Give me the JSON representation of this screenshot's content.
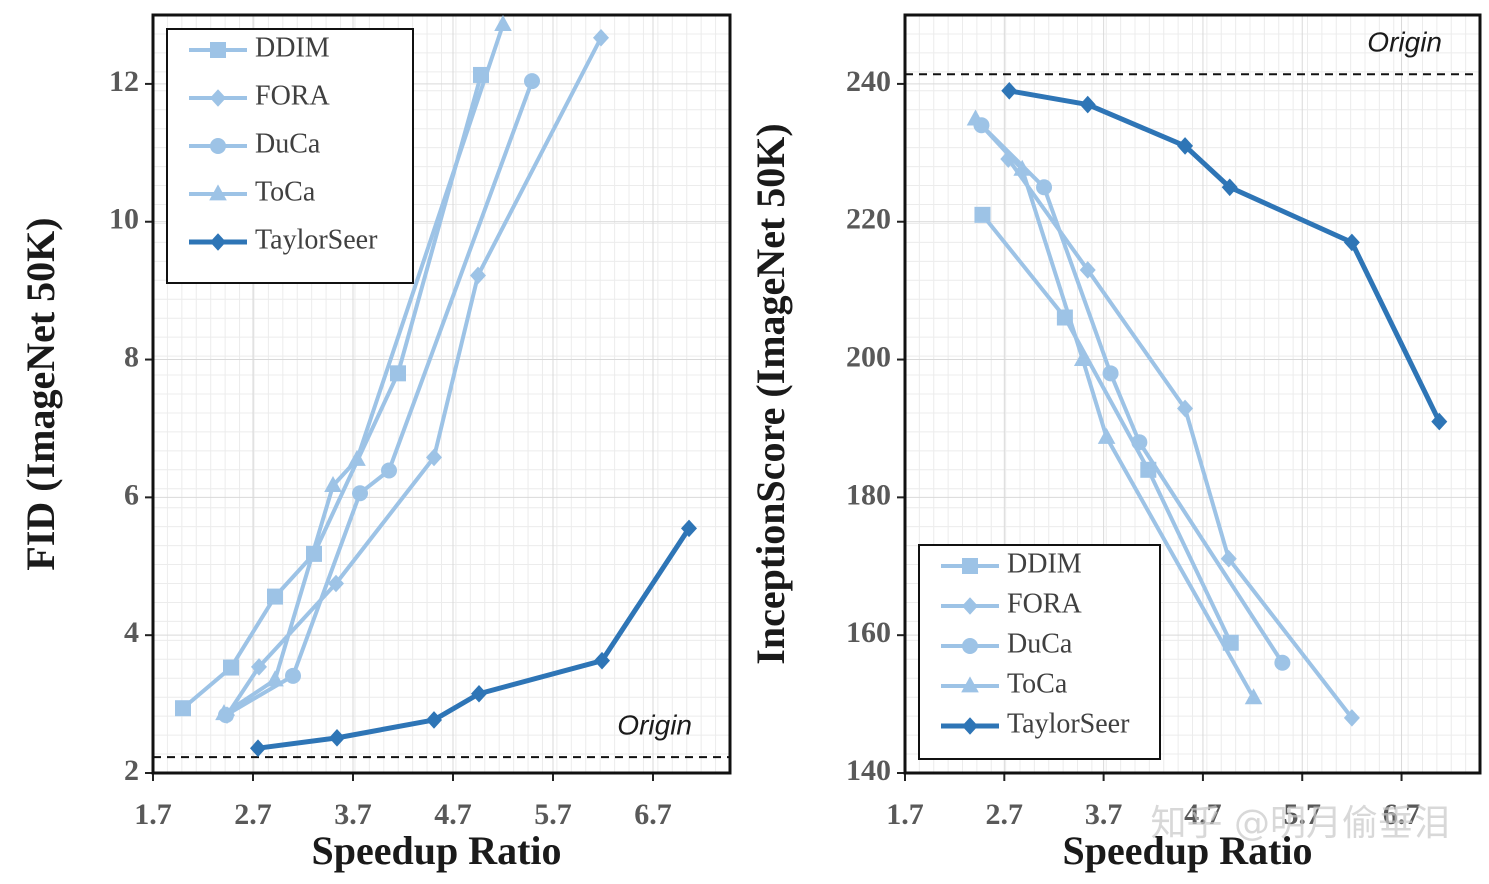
{
  "chart_data": [
    {
      "type": "line",
      "xlabel": "Speedup Ratio",
      "ylabel": "FID  (ImageNet 50K)",
      "xlim": [
        1.7,
        7.47
      ],
      "xticks": [
        1.7,
        2.7,
        3.7,
        4.7,
        5.7,
        6.7
      ],
      "ylim": [
        2,
        13
      ],
      "yticks": [
        2,
        4,
        6,
        8,
        10,
        12
      ],
      "grid": true,
      "legend": "upper left",
      "origin_line": 2.23,
      "origin_label": "Origin",
      "series": [
        {
          "name": "DDIM",
          "color": "#9dc3e6",
          "marker": "square",
          "x": [
            2.0,
            2.48,
            2.92,
            3.31,
            4.15,
            4.98
          ],
          "values": [
            2.94,
            3.53,
            4.56,
            5.18,
            7.8,
            12.13
          ]
        },
        {
          "name": "FORA",
          "color": "#9dc3e6",
          "marker": "diamond",
          "x": [
            2.44,
            2.76,
            3.53,
            4.51,
            4.95,
            6.18
          ],
          "values": [
            2.84,
            3.54,
            4.75,
            6.58,
            9.22,
            12.67
          ]
        },
        {
          "name": "DuCa",
          "color": "#9dc3e6",
          "marker": "circle",
          "x": [
            2.43,
            3.1,
            3.77,
            4.06,
            5.49
          ],
          "values": [
            2.84,
            3.41,
            6.06,
            6.39,
            12.04
          ]
        },
        {
          "name": "ToCa",
          "color": "#9dc3e6",
          "marker": "triangle",
          "x": [
            2.41,
            2.92,
            3.5,
            3.74,
            5.2
          ],
          "values": [
            2.86,
            3.35,
            6.17,
            6.55,
            12.86
          ]
        },
        {
          "name": "TaylorSeer",
          "color": "#2e75b6",
          "marker": "diamond",
          "x": [
            2.75,
            3.54,
            4.51,
            4.96,
            6.19,
            7.06
          ],
          "values": [
            2.36,
            2.51,
            2.77,
            3.15,
            3.63,
            5.55
          ]
        }
      ]
    },
    {
      "type": "line",
      "xlabel": "Speedup Ratio",
      "ylabel": "InceptionScore  (ImageNet 50K)",
      "xlim": [
        1.7,
        7.49
      ],
      "xticks": [
        1.7,
        2.7,
        3.7,
        4.7,
        5.7,
        6.7
      ],
      "ylim": [
        140,
        250
      ],
      "yticks": [
        140,
        160,
        180,
        200,
        220,
        240
      ],
      "grid": true,
      "legend": "lower left",
      "origin_line": 241.4,
      "origin_label": "Origin",
      "watermark": "知乎 @明月偷垂泪",
      "series": [
        {
          "name": "DDIM",
          "color": "#9dc3e6",
          "marker": "square",
          "x": [
            2.48,
            3.31,
            4.15,
            4.98
          ],
          "values": [
            221,
            206.1,
            184.0,
            158.9
          ]
        },
        {
          "name": "FORA",
          "color": "#9dc3e6",
          "marker": "diamond",
          "x": [
            2.74,
            3.54,
            4.52,
            4.96,
            6.2
          ],
          "values": [
            229.1,
            213.0,
            192.9,
            171.1,
            148.0
          ]
        },
        {
          "name": "DuCa",
          "color": "#9dc3e6",
          "marker": "circle",
          "x": [
            2.47,
            3.1,
            3.77,
            4.06,
            5.5
          ],
          "values": [
            234.0,
            225.0,
            198.0,
            188.0,
            156.0
          ]
        },
        {
          "name": "ToCa",
          "color": "#9dc3e6",
          "marker": "triangle",
          "x": [
            2.41,
            2.88,
            3.49,
            3.73,
            5.21
          ],
          "values": [
            234.9,
            227.6,
            200.0,
            188.7,
            150.9
          ]
        },
        {
          "name": "TaylorSeer",
          "color": "#2e75b6",
          "marker": "diamond",
          "x": [
            2.75,
            3.54,
            4.52,
            4.97,
            6.2,
            7.08
          ],
          "values": [
            239.0,
            237.0,
            231.0,
            225.0,
            217.0,
            191.0
          ]
        }
      ]
    }
  ]
}
